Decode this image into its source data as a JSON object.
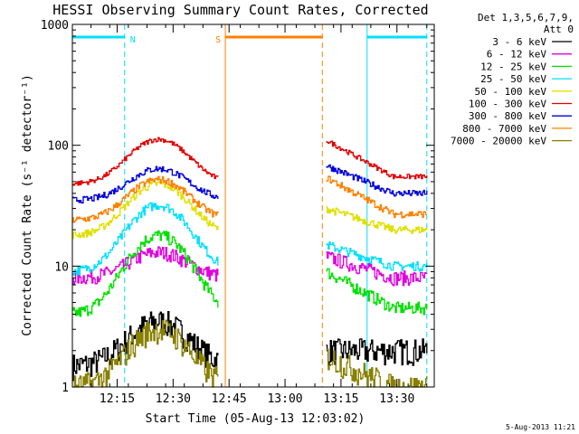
{
  "chart_data": {
    "type": "line",
    "title": "HESSI Observing Summary Count Rates, Corrected",
    "xlabel": "Start Time (05-Aug-13 12:03:02)",
    "ylabel": "Corrected Count Rate (s⁻¹ detector⁻¹)",
    "yscale": "log",
    "ylim": [
      1,
      1000
    ],
    "xlim": [
      "12:03",
      "13:40"
    ],
    "x_ticks": [
      "12:15",
      "12:30",
      "12:45",
      "13:00",
      "13:15",
      "13:30"
    ],
    "y_ticks": [
      "1",
      "10",
      "100",
      "1000"
    ],
    "legend": {
      "placement": "right",
      "header": [
        "Det 1,3,5,6,7,9,",
        "Att 0"
      ]
    },
    "timestamp": "5-Aug-2013 11:21",
    "flags": [
      {
        "label": "N",
        "color": "#00e0ff",
        "start": "12:03",
        "end": "12:17"
      },
      {
        "label": "",
        "color": "#00e0ff",
        "start": "13:22",
        "end": "13:38"
      },
      {
        "label": "S",
        "color": "#ff8000",
        "start": "12:44",
        "end": "13:10"
      }
    ],
    "gap": [
      "12:42",
      "13:11"
    ],
    "series": [
      {
        "name": "3 - 6 keV",
        "color": "#000000",
        "values": [
          [
            1.5,
            2.5
          ],
          [
            3.5,
            6.5
          ],
          [
            2,
            4
          ],
          [
            2,
            3
          ]
        ]
      },
      {
        "name": "6 - 12 keV",
        "color": "#e000e0",
        "values": [
          [
            8,
            8.5
          ],
          [
            13,
            13
          ],
          [
            12,
            13
          ],
          [
            8,
            8
          ]
        ]
      },
      {
        "name": "12 - 25 keV",
        "color": "#00e000",
        "values": [
          [
            4,
            4.5
          ],
          [
            18,
            18
          ],
          [
            9,
            8
          ],
          [
            4.5,
            4.5
          ]
        ]
      },
      {
        "name": "25 - 50 keV",
        "color": "#00e0ff",
        "values": [
          [
            9,
            9.5
          ],
          [
            32,
            32
          ],
          [
            15,
            14
          ],
          [
            10,
            10
          ]
        ]
      },
      {
        "name": "50 - 100 keV",
        "color": "#e0e000",
        "values": [
          [
            18,
            19
          ],
          [
            48,
            48
          ],
          [
            30,
            28
          ],
          [
            20,
            20
          ]
        ]
      },
      {
        "name": "100 - 300 keV",
        "color": "#e00000",
        "values": [
          [
            48,
            50
          ],
          [
            112,
            112
          ],
          [
            110,
            100
          ],
          [
            55,
            55
          ]
        ]
      },
      {
        "name": "300 - 800 keV",
        "color": "#0000e0",
        "values": [
          [
            35,
            36
          ],
          [
            64,
            64
          ],
          [
            68,
            60
          ],
          [
            40,
            40
          ]
        ]
      },
      {
        "name": "800 - 7000 keV",
        "color": "#ff8000",
        "values": [
          [
            24,
            25
          ],
          [
            52,
            52
          ],
          [
            54,
            48
          ],
          [
            27,
            27
          ]
        ]
      },
      {
        "name": "7000 - 20000 keV",
        "color": "#888000",
        "values": [
          [
            1,
            1.5
          ],
          [
            3,
            3.5
          ],
          [
            1.8,
            3
          ],
          [
            1,
            1.5
          ]
        ]
      }
    ]
  }
}
